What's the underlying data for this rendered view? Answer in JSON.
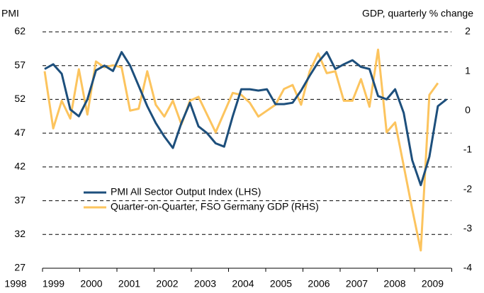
{
  "chart_data": {
    "type": "line",
    "y_label": "PMI",
    "y2_label": "GDP, quarterly % change",
    "categories": [
      "1998",
      null,
      null,
      null,
      "1999",
      null,
      null,
      null,
      "2000",
      null,
      null,
      null,
      "2001",
      null,
      null,
      null,
      "2002",
      null,
      null,
      null,
      "2003",
      null,
      null,
      null,
      "2004",
      null,
      null,
      null,
      "2005",
      null,
      null,
      null,
      "2006",
      null,
      null,
      null,
      "2007",
      null,
      null,
      null,
      "2008",
      null,
      null,
      null,
      "2009",
      null,
      null,
      null
    ],
    "series": [
      {
        "name": "PMI All Sector Output Index (LHS)",
        "color": "#1d4f7c",
        "axis": "y",
        "values": [
          56.5,
          57.2,
          55.8,
          50.5,
          49.5,
          52,
          56.3,
          57,
          56.2,
          59,
          57,
          54,
          51,
          48.5,
          46.5,
          44.8,
          48.5,
          51.5,
          48,
          47,
          45.5,
          45,
          49.5,
          53.5,
          53.5,
          53.3,
          53.5,
          51.3,
          51.3,
          51.5,
          53.3,
          55.5,
          57.5,
          59,
          56.5,
          57.2,
          57.8,
          56.8,
          56.5,
          52.5,
          52,
          53.5,
          50,
          43,
          39.3,
          43.5,
          51,
          52
        ]
      },
      {
        "name": "Quarter-on-Quarter, FSO Germany GDP (RHS)",
        "color": "#fcc45e",
        "axis": "y2",
        "values": [
          1.0,
          -0.45,
          0.25,
          -0.2,
          1.05,
          -0.1,
          1.25,
          1.1,
          1.15,
          1.1,
          0.0,
          0.05,
          1.0,
          0.15,
          -0.15,
          0.25,
          -0.35,
          0.25,
          0.35,
          -0.1,
          -0.55,
          -0.05,
          0.45,
          0.4,
          0.2,
          -0.15,
          0,
          0.15,
          0.55,
          0.65,
          0.15,
          1.0,
          1.45,
          0.95,
          1.0,
          0.25,
          0.25,
          0.8,
          0.1,
          1.55,
          -0.55,
          -0.3,
          -1.4,
          -2.5,
          -3.55,
          0.4,
          0.7,
          null
        ]
      }
    ],
    "ylim": [
      27,
      62
    ],
    "yticks": [
      27,
      32,
      37,
      42,
      47,
      52,
      57,
      62
    ],
    "y2lim": [
      -4,
      2
    ],
    "y2ticks": [
      -4,
      -3,
      -2,
      -1,
      0,
      1,
      2
    ],
    "grid": true
  }
}
